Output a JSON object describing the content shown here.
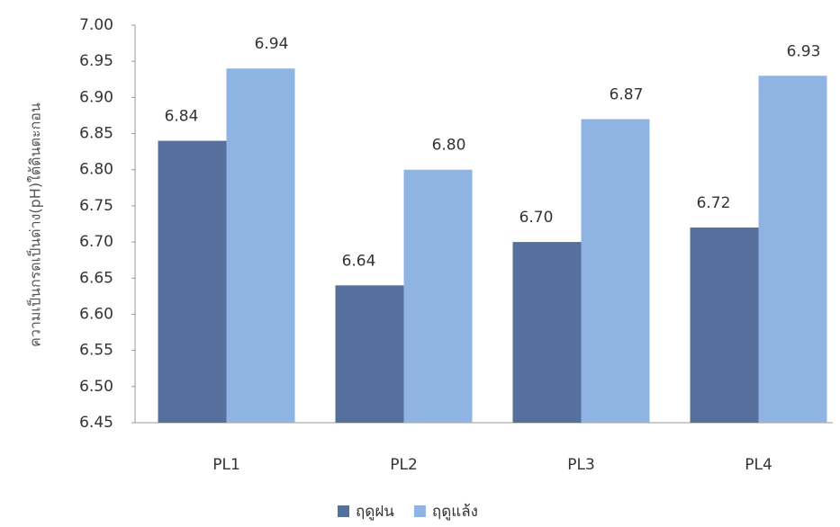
{
  "chart_data": {
    "type": "bar",
    "y_label": "ความเป็นกรดเป็นด่าง(pH)ใต้ดินตะกอน",
    "categories": [
      "PL1",
      "PL2",
      "PL3",
      "PL4"
    ],
    "series": [
      {
        "name": "ฤดูฝน",
        "color": "#56709e",
        "values": [
          6.84,
          6.64,
          6.7,
          6.72
        ],
        "value_labels": [
          "6.84",
          "6.64",
          "6.70",
          "6.72"
        ]
      },
      {
        "name": "ฤดูแล้ง",
        "color": "#8fb4e3",
        "values": [
          6.94,
          6.8,
          6.87,
          6.93
        ],
        "value_labels": [
          "6.94",
          "6.80",
          "6.87",
          "6.93"
        ]
      }
    ],
    "ylim": [
      6.45,
      7.0
    ],
    "yticks": [
      {
        "value": 6.45,
        "label": "6.45"
      },
      {
        "value": 6.5,
        "label": "6.50"
      },
      {
        "value": 6.55,
        "label": "6.55"
      },
      {
        "value": 6.6,
        "label": "6.60"
      },
      {
        "value": 6.65,
        "label": "6.65"
      },
      {
        "value": 6.7,
        "label": "6.70"
      },
      {
        "value": 6.75,
        "label": "6.75"
      },
      {
        "value": 6.8,
        "label": "6.80"
      },
      {
        "value": 6.85,
        "label": "6.85"
      },
      {
        "value": 6.9,
        "label": "6.90"
      },
      {
        "value": 6.95,
        "label": "6.95"
      },
      {
        "value": 7.0,
        "label": "7.00"
      }
    ],
    "legend": "bottom"
  }
}
